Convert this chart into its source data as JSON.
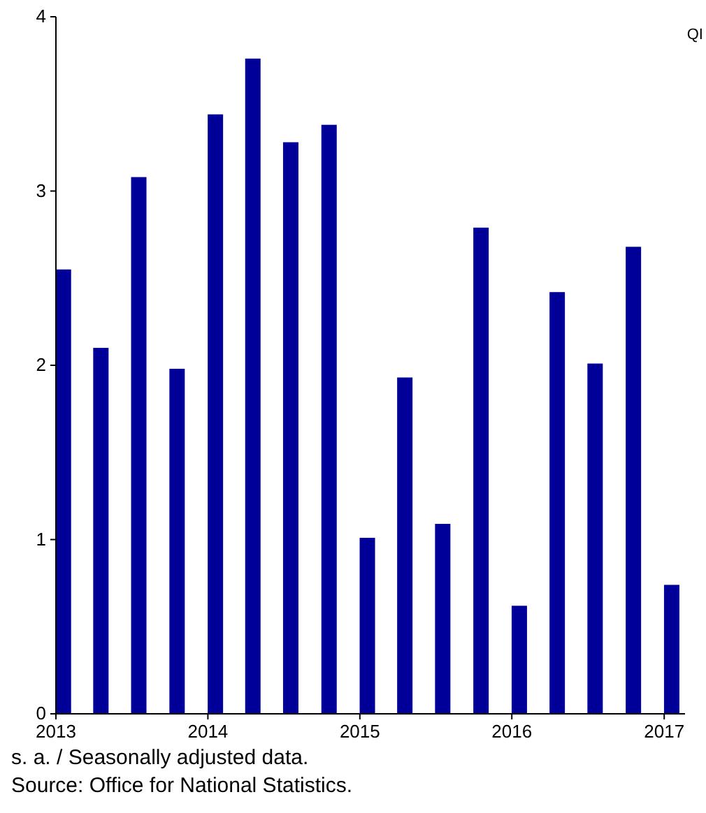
{
  "chart_data": {
    "type": "bar",
    "x": [
      "2013-01-19",
      "2013-04-19",
      "2013-07-19",
      "2013-10-19",
      "2014-01-19",
      "2014-04-19",
      "2014-07-19",
      "2014-10-19",
      "2015-01-19",
      "2015-04-19",
      "2015-07-19",
      "2015-10-19",
      "2016-01-19",
      "2016-04-19",
      "2016-07-19",
      "2016-10-19",
      "2017-01-19"
    ],
    "series": [
      {
        "color": "#000099",
        "values": [
          2.55,
          2.1,
          3.08,
          1.98,
          3.44,
          3.76,
          3.28,
          3.38,
          1.01,
          1.93,
          1.09,
          2.79,
          0.62,
          2.42,
          2.01,
          2.68,
          0.74
        ]
      }
    ],
    "xlim": [
      "2013-01-01",
      "2017-02-20"
    ],
    "xticks": [
      {
        "value": "2013-01-01",
        "label": "2013"
      },
      {
        "value": "2014-01-01",
        "label": "2014"
      },
      {
        "value": "2015-01-01",
        "label": "2015"
      },
      {
        "value": "2016-01-01",
        "label": "2016"
      },
      {
        "value": "2017-01-01",
        "label": "2017"
      }
    ],
    "ylim": [
      0,
      4
    ],
    "yticks": [
      0,
      1,
      2,
      3,
      4
    ],
    "grid": false,
    "annotations": [
      "QI",
      "s. a. / Seasonally adjusted data.",
      "Source: Office for National Statistics."
    ]
  }
}
